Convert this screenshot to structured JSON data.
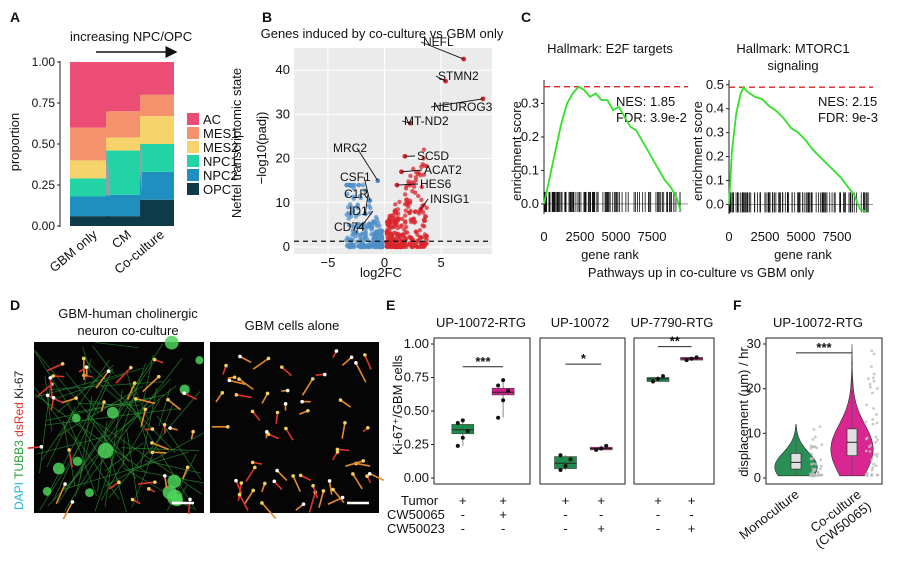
{
  "panels": {
    "A": {
      "label": "A",
      "arrow_text": "increasing NPC/OPC",
      "ylabel": "proportion",
      "legend_title": "Neftel transcriptomic state"
    },
    "B": {
      "label": "B",
      "title": "Genes induced by co-culture vs GBM only",
      "xlabel": "log2FC",
      "ylabel": "−log10(padj)"
    },
    "C": {
      "label": "C",
      "left_title": "Hallmark: E2F targets",
      "left_stats": [
        "NES: 1.85",
        "FDR: 3.9e-2"
      ],
      "right_title_1": "Hallmark: MTORC1",
      "right_title_2": "signaling",
      "right_stats": [
        "NES: 2.15",
        "FDR: 9e-3"
      ],
      "ylabel": "enrichment score",
      "xlabel": "gene rank",
      "caption": "Pathways up in co-culture vs GBM only"
    },
    "D": {
      "label": "D",
      "left_title_1": "GBM-human cholinergic",
      "left_title_2": "neuron co-culture",
      "right_title": "GBM cells alone",
      "side_label_parts": [
        {
          "text": "DAPI",
          "color": "#1fb6d9"
        },
        {
          "text": " TUBB3",
          "color": "#2e9e3a"
        },
        {
          "text": " dsRed",
          "color": "#e0332e"
        },
        {
          "text": " Ki-67",
          "color": "#222222"
        }
      ]
    },
    "E": {
      "label": "E",
      "titles": [
        "UP-10072-RTG",
        "UP-10072",
        "UP-7790-RTG"
      ],
      "ylabel": "Ki-67⁺/GBM cells",
      "significance": [
        "***",
        "*",
        "**"
      ],
      "row_labels": [
        "Tumor",
        "CW50065",
        "CW50023"
      ],
      "row_marks": [
        [
          [
            "+",
            "+"
          ],
          [
            "-",
            "+"
          ],
          [
            "-",
            "-"
          ]
        ],
        [
          [
            "+",
            "+"
          ],
          [
            "-",
            "-"
          ],
          [
            "-",
            "+"
          ]
        ],
        [
          [
            "+",
            "+"
          ],
          [
            "-",
            "-"
          ],
          [
            "-",
            "+"
          ]
        ]
      ]
    },
    "F": {
      "label": "F",
      "title": "UP-10072-RTG",
      "ylabel": "displacement (μm) / hr",
      "significance": "***",
      "xlabels": [
        "Monoculture",
        "Co-culture",
        "(CW50065)"
      ]
    }
  },
  "chart_data": [
    {
      "id": "A",
      "type": "bar",
      "stacked": true,
      "categories": [
        "GBM only",
        "CM",
        "Co-culture"
      ],
      "ylim": [
        0,
        1
      ],
      "yticks": [
        "0.00",
        "0.25",
        "0.50",
        "0.75",
        "1.00"
      ],
      "series": [
        {
          "name": "OPC",
          "color": "#0d3b4a",
          "values": [
            0.06,
            0.06,
            0.16
          ]
        },
        {
          "name": "NPC2",
          "color": "#1e8fbf",
          "values": [
            0.12,
            0.13,
            0.17
          ]
        },
        {
          "name": "NPC1",
          "color": "#22d3a5",
          "values": [
            0.11,
            0.27,
            0.17
          ]
        },
        {
          "name": "MES2",
          "color": "#f7d36b",
          "values": [
            0.11,
            0.08,
            0.17
          ]
        },
        {
          "name": "MES1",
          "color": "#f5926e",
          "values": [
            0.2,
            0.16,
            0.13
          ]
        },
        {
          "name": "AC",
          "color": "#ec4d74",
          "values": [
            0.4,
            0.3,
            0.2
          ]
        }
      ]
    },
    {
      "id": "B",
      "type": "scatter",
      "xlim": [
        -8,
        9.5
      ],
      "ylim": [
        0,
        45
      ],
      "xticks": [
        "-5",
        "0",
        "5"
      ],
      "yticks": [
        "0",
        "10",
        "20",
        "30",
        "40"
      ],
      "threshold_y": 1.3,
      "down_color": "#4f8fc8",
      "up_color": "#d9262e",
      "labeled_genes": [
        {
          "gene": "NEFL",
          "x": 7.0,
          "y": 42.5
        },
        {
          "gene": "STMN2",
          "x": 5.4,
          "y": 37.5
        },
        {
          "gene": "NEUROG3",
          "x": 8.7,
          "y": 33.5
        },
        {
          "gene": "MT-ND2",
          "x": 2.3,
          "y": 28.0
        },
        {
          "gene": "SC5D",
          "x": 1.8,
          "y": 20.5
        },
        {
          "gene": "ACAT2",
          "x": 1.5,
          "y": 17.0
        },
        {
          "gene": "HES6",
          "x": 1.1,
          "y": 14.0
        },
        {
          "gene": "INSIG1",
          "x": 3.2,
          "y": 8.5
        },
        {
          "gene": "MRC2",
          "x": -0.6,
          "y": 15.0
        },
        {
          "gene": "CSF1",
          "x": -1.3,
          "y": 10.5
        },
        {
          "gene": "C1R",
          "x": -1.7,
          "y": 7.5
        },
        {
          "gene": "ID1",
          "x": -2.0,
          "y": 4.8
        },
        {
          "gene": "CD74",
          "x": -2.5,
          "y": 3.2
        }
      ]
    },
    {
      "id": "C-left",
      "type": "line",
      "title": "Hallmark: E2F targets",
      "xticks": [
        "0",
        "2500",
        "5000",
        "7500"
      ],
      "yticks": [
        "0.0",
        "0.1",
        "0.2",
        "0.3"
      ],
      "xlim": [
        0,
        10000
      ],
      "ylim": [
        -0.03,
        0.37
      ],
      "max_es": 0.35,
      "x": [
        0,
        400,
        800,
        1200,
        1600,
        2000,
        2400,
        2800,
        3200,
        3600,
        4000,
        4400,
        4800,
        5200,
        5600,
        6000,
        6400,
        6800,
        7200,
        7600,
        8000,
        8400,
        8800,
        9200,
        9500
      ],
      "y": [
        0.0,
        0.08,
        0.16,
        0.24,
        0.3,
        0.33,
        0.35,
        0.34,
        0.32,
        0.33,
        0.31,
        0.31,
        0.28,
        0.29,
        0.26,
        0.23,
        0.22,
        0.19,
        0.16,
        0.13,
        0.1,
        0.07,
        0.05,
        0.02,
        -0.02
      ]
    },
    {
      "id": "C-right",
      "type": "line",
      "title": "Hallmark: MTORC1 signaling",
      "xticks": [
        "0",
        "2500",
        "5000",
        "7500"
      ],
      "yticks": [
        "0.0",
        "0.1",
        "0.2",
        "0.3",
        "0.4",
        "0.5"
      ],
      "xlim": [
        0,
        10000
      ],
      "ylim": [
        -0.04,
        0.52
      ],
      "max_es": 0.49,
      "x": [
        0,
        200,
        500,
        800,
        1000,
        1300,
        1800,
        2300,
        2800,
        3300,
        3800,
        4300,
        4800,
        5300,
        5800,
        6300,
        6800,
        7300,
        7800,
        8300,
        8700,
        9100,
        9500
      ],
      "y": [
        0.0,
        0.22,
        0.38,
        0.46,
        0.49,
        0.47,
        0.45,
        0.44,
        0.41,
        0.39,
        0.36,
        0.32,
        0.3,
        0.27,
        0.23,
        0.2,
        0.17,
        0.14,
        0.11,
        0.07,
        0.04,
        -0.02,
        -0.03
      ]
    },
    {
      "id": "E",
      "type": "box",
      "ylim": [
        0,
        1
      ],
      "yticks": [
        "0.00",
        "0.25",
        "0.50",
        "0.75",
        "1.00"
      ],
      "groups": [
        {
          "panel": "UP-10072-RTG",
          "condition": "Tumor",
          "color": "#1e8a4c",
          "q1": 0.33,
          "median": 0.36,
          "q3": 0.4,
          "min": 0.24,
          "max": 0.43,
          "points": [
            0.24,
            0.3,
            0.35,
            0.41,
            0.43
          ]
        },
        {
          "panel": "UP-10072-RTG",
          "condition": "Tumor + CW50065",
          "color": "#d81b8c",
          "q1": 0.62,
          "median": 0.64,
          "q3": 0.67,
          "min": 0.45,
          "max": 0.73,
          "points": [
            0.45,
            0.58,
            0.65,
            0.69,
            0.73
          ]
        },
        {
          "panel": "UP-10072",
          "condition": "Tumor",
          "color": "#1e8a4c",
          "q1": 0.07,
          "median": 0.11,
          "q3": 0.16,
          "min": 0.06,
          "max": 0.17,
          "points": [
            0.06,
            0.09,
            0.14,
            0.17
          ]
        },
        {
          "panel": "UP-10072",
          "condition": "Tumor + CW50023",
          "color": "#d81b8c",
          "q1": 0.21,
          "median": 0.22,
          "q3": 0.23,
          "min": 0.21,
          "max": 0.24,
          "points": [
            0.21,
            0.22,
            0.24
          ]
        },
        {
          "panel": "UP-7790-RTG",
          "condition": "Tumor",
          "color": "#1e8a4c",
          "q1": 0.72,
          "median": 0.74,
          "q3": 0.75,
          "min": 0.72,
          "max": 0.76,
          "points": [
            0.72,
            0.74,
            0.76
          ]
        },
        {
          "panel": "UP-7790-RTG",
          "condition": "Tumor + CW50023",
          "color": "#d81b8c",
          "q1": 0.88,
          "median": 0.89,
          "q3": 0.9,
          "min": 0.88,
          "max": 0.9,
          "points": [
            0.88,
            0.89,
            0.9
          ]
        }
      ]
    },
    {
      "id": "F",
      "type": "violin",
      "title": "UP-10072-RTG",
      "ylim": [
        0,
        30
      ],
      "yticks": [
        "0",
        "10",
        "20",
        "30"
      ],
      "groups": [
        {
          "name": "Monoculture",
          "color": "#1e8a4c",
          "min": 0.5,
          "q1": 2.0,
          "median": 3.5,
          "q3": 5.5,
          "max": 12,
          "mode": 2.5
        },
        {
          "name": "Co-culture (CW50065)",
          "color": "#d81b8c",
          "min": 0.5,
          "q1": 5.0,
          "median": 8.0,
          "q3": 11.0,
          "max": 30,
          "mode": 6.5
        }
      ]
    }
  ]
}
